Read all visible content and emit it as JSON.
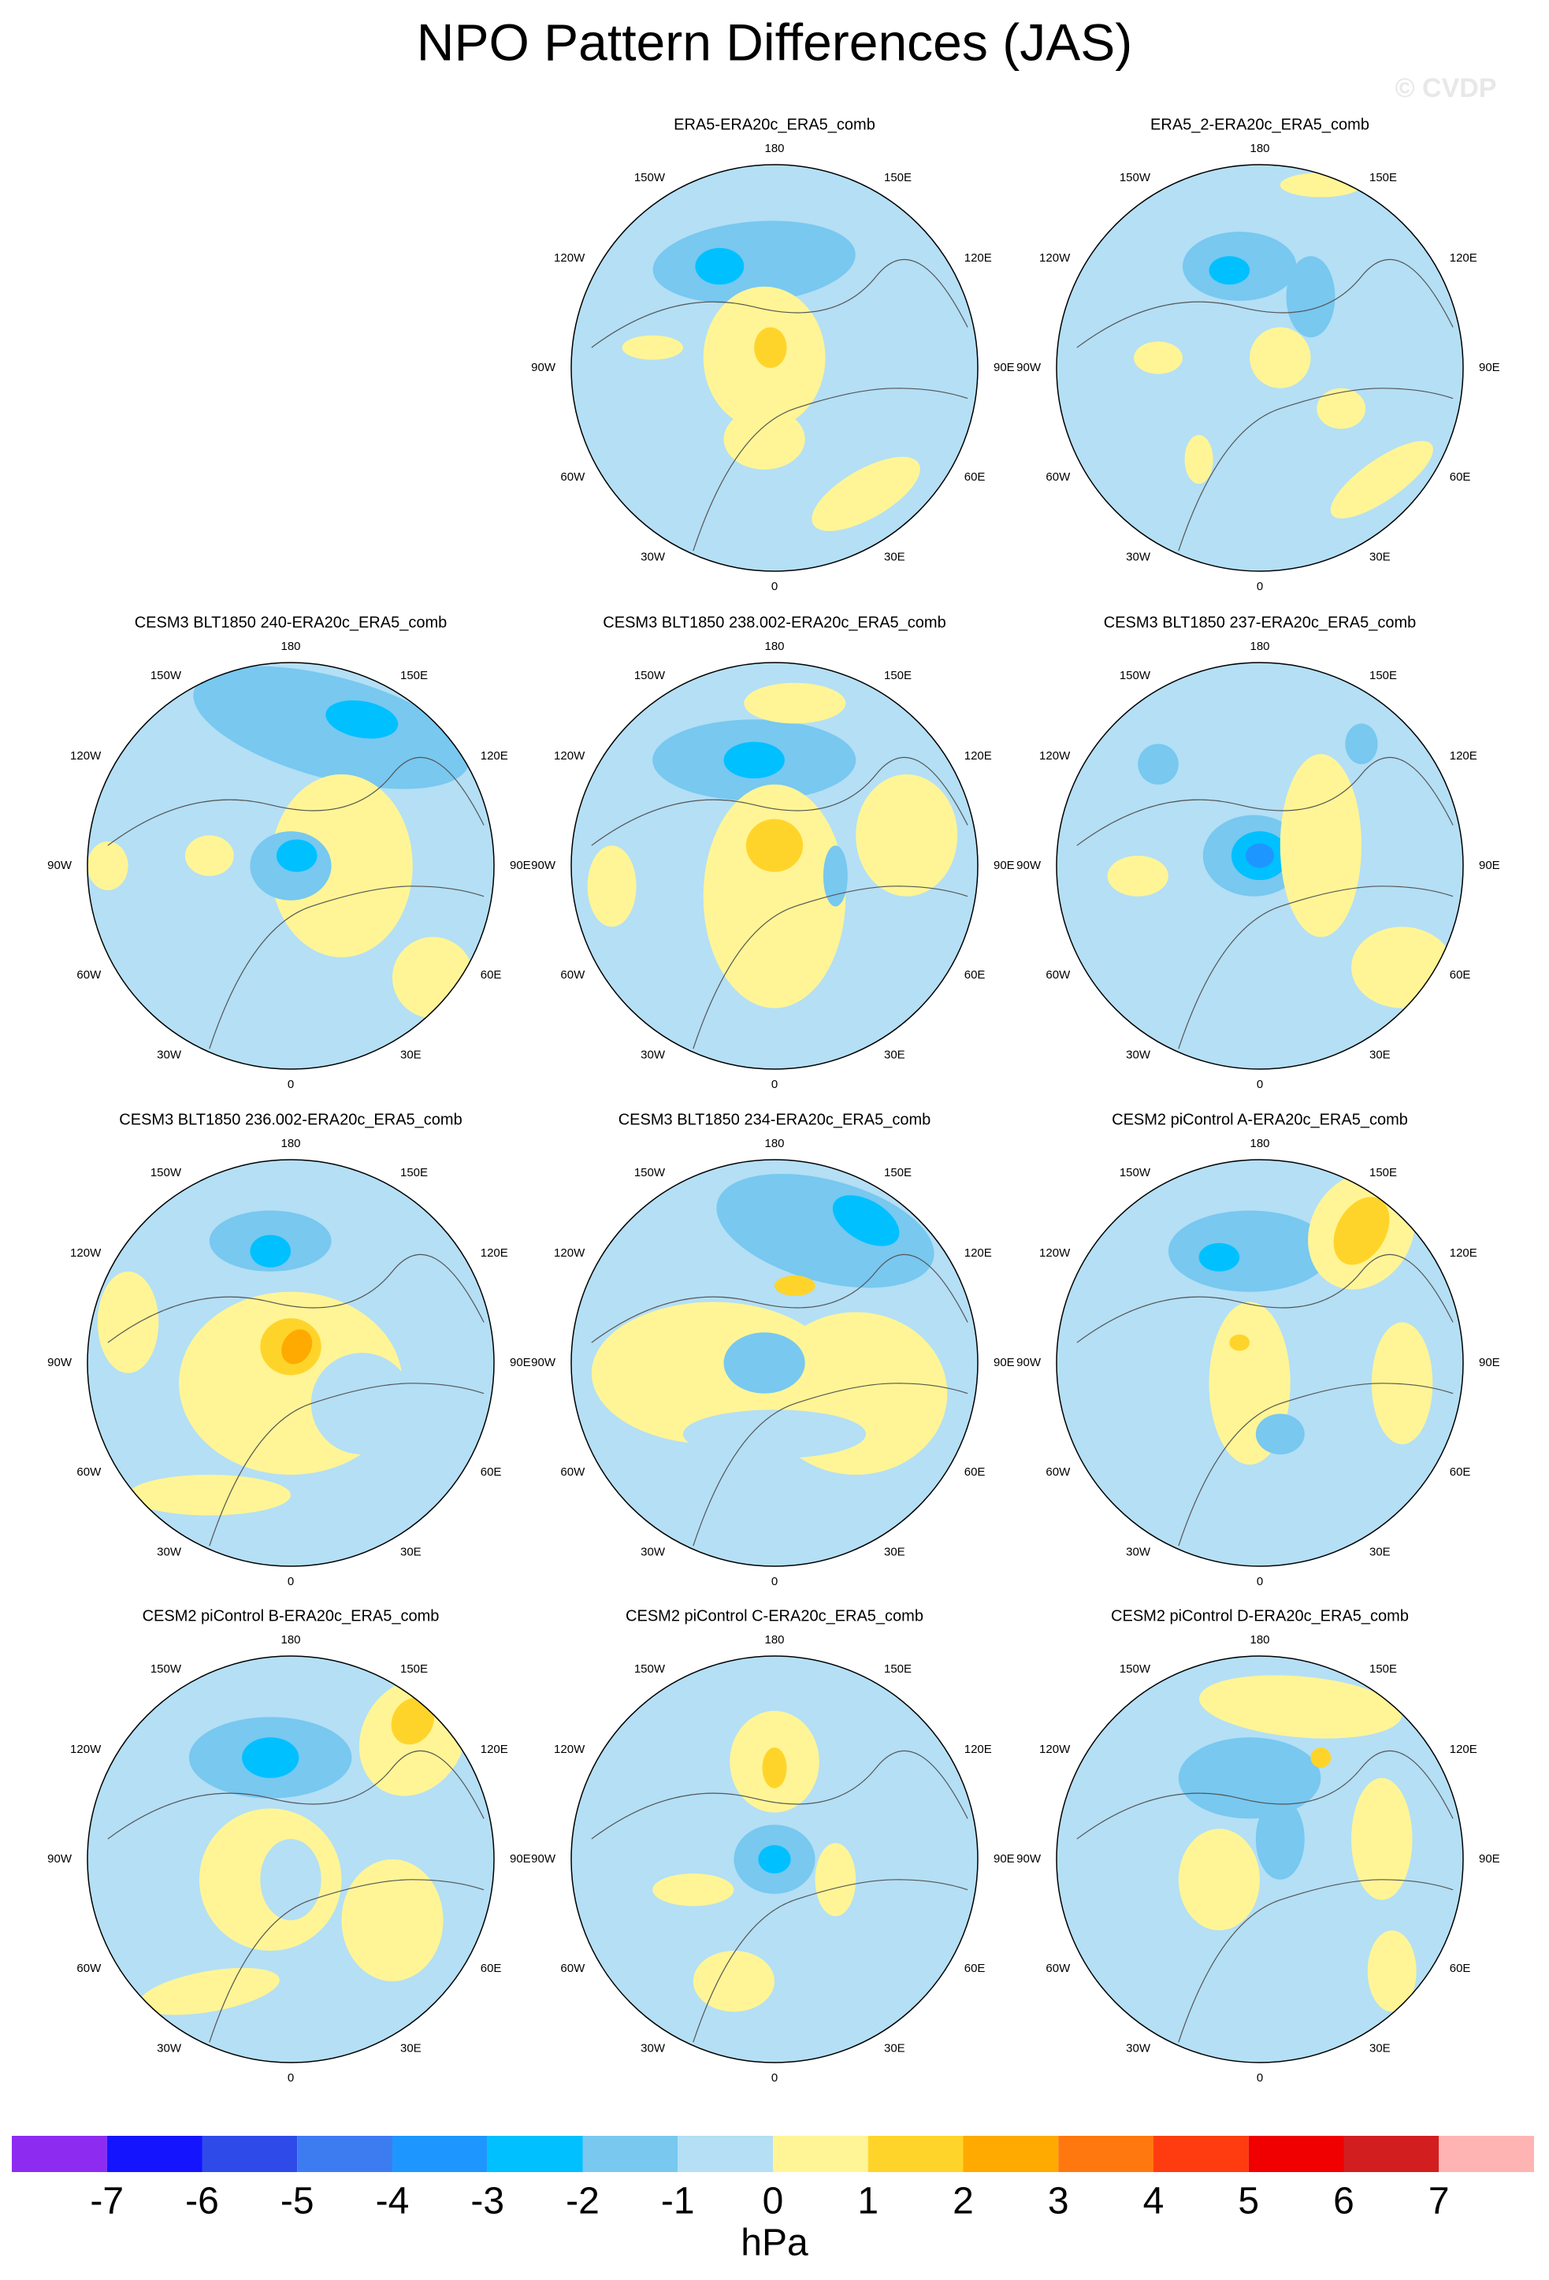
{
  "title": "NPO Pattern Differences (JAS)",
  "watermark": "© CVDP",
  "lon_labels": [
    180,
    "150E",
    "120E",
    "90E",
    "60E",
    "30E",
    0,
    "30W",
    "60W",
    "90W",
    "120W",
    "150W"
  ],
  "panels": [
    {
      "title": "ERA5-ERA20c_ERA5_comb"
    },
    {
      "title": "ERA5_2-ERA20c_ERA5_comb"
    },
    {
      "title": "CESM3 BLT1850 240-ERA20c_ERA5_comb"
    },
    {
      "title": "CESM3 BLT1850 238.002-ERA20c_ERA5_comb"
    },
    {
      "title": "CESM3 BLT1850 237-ERA20c_ERA5_comb"
    },
    {
      "title": "CESM3 BLT1850 236.002-ERA20c_ERA5_comb"
    },
    {
      "title": "CESM3 BLT1850 234-ERA20c_ERA5_comb"
    },
    {
      "title": "CESM2 piControl A-ERA20c_ERA5_comb"
    },
    {
      "title": "CESM2 piControl B-ERA20c_ERA5_comb"
    },
    {
      "title": "CESM2 piControl C-ERA20c_ERA5_comb"
    },
    {
      "title": "CESM2 piControl D-ERA20c_ERA5_comb"
    }
  ],
  "colorbar": {
    "levels": [
      -7,
      -6,
      -5,
      -4,
      -3,
      -2,
      -1,
      0,
      1,
      2,
      3,
      4,
      5,
      6,
      7
    ],
    "colors": [
      "#8d2bf0",
      "#1414ff",
      "#2e4bea",
      "#3d7cf0",
      "#1e96ff",
      "#00c0ff",
      "#78c8f0",
      "#b4dff5",
      "#fff596",
      "#ffd42a",
      "#ffaa00",
      "#ff780f",
      "#ff3c0f",
      "#f00000",
      "#d21e1e",
      "#ffb4b4"
    ],
    "unit": "hPa"
  }
}
